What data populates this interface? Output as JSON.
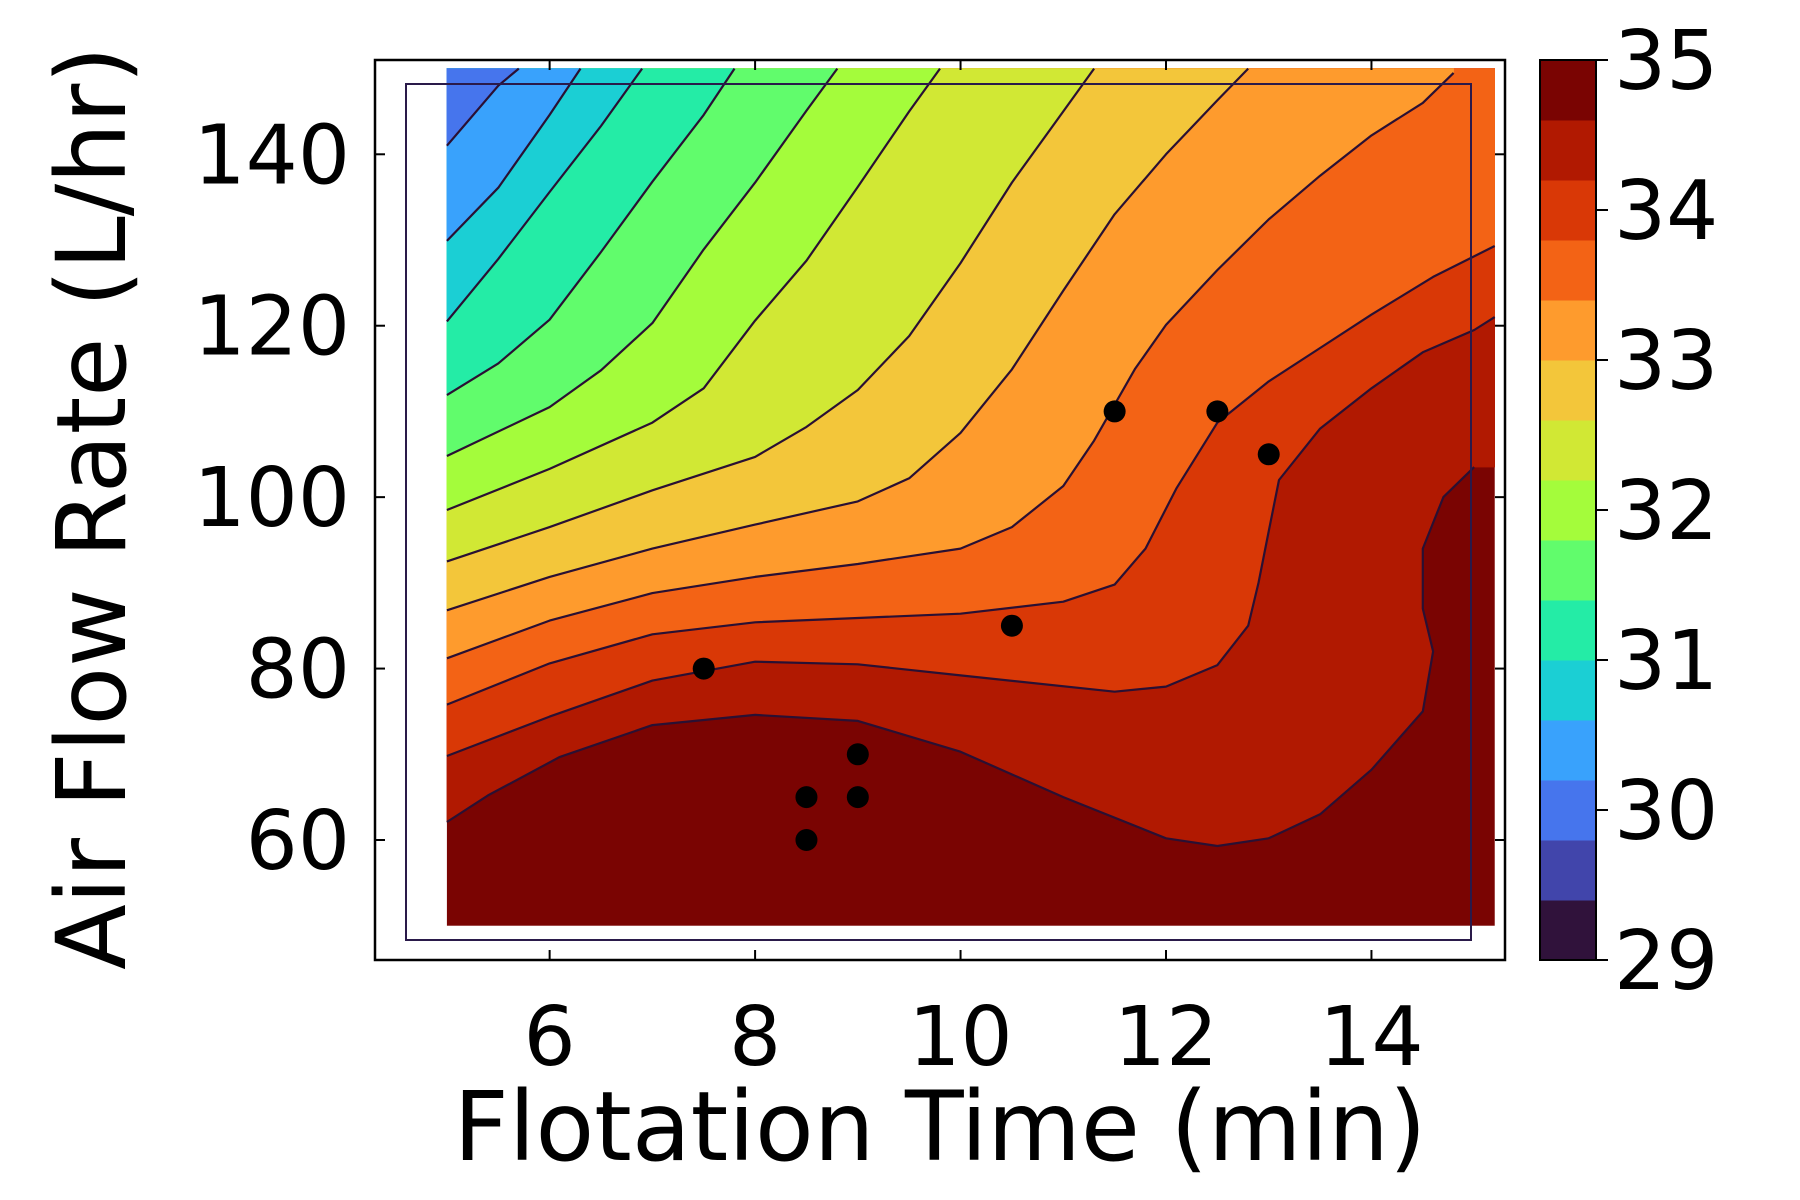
{
  "chart_data": {
    "type": "contour",
    "xlabel": "Flotation Time (min)",
    "ylabel": "Air Flow Rate (L/hr)",
    "xlim": [
      4.3,
      15.3
    ],
    "ylim": [
      46,
      151
    ],
    "xticks": [
      6,
      8,
      10,
      12,
      14
    ],
    "yticks": [
      60,
      80,
      100,
      120,
      140
    ],
    "colorbar": {
      "label": "",
      "range": [
        29,
        35
      ],
      "ticks": [
        29,
        30,
        31,
        32,
        33,
        34,
        35
      ],
      "levels": [
        29,
        29.4,
        29.8,
        30.2,
        30.6,
        31,
        31.4,
        31.8,
        32.2,
        32.6,
        33,
        33.4,
        33.8,
        34.2,
        34.6,
        35
      ],
      "colors": [
        "#30123b",
        "#4145ab",
        "#4675ed",
        "#39a2fc",
        "#1bcfd4",
        "#24eca6",
        "#61fc6c",
        "#a4fc3b",
        "#d1e834",
        "#f3c63a",
        "#fe9b2d",
        "#f36315",
        "#d93806",
        "#b11901",
        "#7a0402"
      ]
    },
    "contour_levels": [
      {
        "level": 34.6,
        "points": [
          [
            5,
            62.1
          ],
          [
            5.4,
            65.2
          ],
          [
            6.1,
            69.7
          ],
          [
            7,
            73.4
          ],
          [
            8,
            74.6
          ],
          [
            9,
            73.9
          ],
          [
            10,
            70.3
          ],
          [
            11,
            65
          ],
          [
            12,
            60.2
          ],
          [
            12.5,
            59.3
          ],
          [
            13,
            60.2
          ],
          [
            13.5,
            63
          ],
          [
            14,
            68.2
          ],
          [
            14.5,
            75
          ],
          [
            14.6,
            82
          ],
          [
            14.5,
            87
          ],
          [
            14.5,
            94
          ],
          [
            14.7,
            100
          ],
          [
            15,
            103.5
          ]
        ]
      },
      {
        "level": 34.2,
        "points": [
          [
            5,
            69.8
          ],
          [
            6,
            74.4
          ],
          [
            7,
            78.6
          ],
          [
            8,
            80.8
          ],
          [
            9,
            80.5
          ],
          [
            10,
            79.2
          ],
          [
            11.5,
            77.3
          ],
          [
            12,
            77.9
          ],
          [
            12.5,
            80.4
          ],
          [
            12.8,
            85
          ],
          [
            12.9,
            90
          ],
          [
            13,
            96
          ],
          [
            13.1,
            102
          ],
          [
            13.5,
            108
          ],
          [
            14,
            112.7
          ],
          [
            14.5,
            116.9
          ],
          [
            15,
            119.5
          ],
          [
            15.2,
            121
          ]
        ]
      },
      {
        "level": 33.8,
        "points": [
          [
            5,
            75.8
          ],
          [
            6,
            80.6
          ],
          [
            7,
            84
          ],
          [
            8,
            85.4
          ],
          [
            9,
            85.9
          ],
          [
            10,
            86.4
          ],
          [
            11,
            87.8
          ],
          [
            11.5,
            89.8
          ],
          [
            11.8,
            94
          ],
          [
            12.1,
            101
          ],
          [
            12.5,
            108.7
          ],
          [
            13,
            113.5
          ],
          [
            13.5,
            117.4
          ],
          [
            14,
            121.3
          ],
          [
            14.6,
            125.7
          ],
          [
            15.2,
            129.3
          ]
        ]
      },
      {
        "level": 33.4,
        "points": [
          [
            5,
            81.2
          ],
          [
            6,
            85.6
          ],
          [
            7,
            88.8
          ],
          [
            8,
            90.7
          ],
          [
            9,
            92.2
          ],
          [
            10,
            94
          ],
          [
            10.5,
            96.5
          ],
          [
            11,
            101.3
          ],
          [
            11.3,
            106.6
          ],
          [
            11.7,
            115
          ],
          [
            12,
            120.1
          ],
          [
            12.5,
            126.5
          ],
          [
            13,
            132.4
          ],
          [
            13.5,
            137.5
          ],
          [
            14,
            142.2
          ],
          [
            14.5,
            146
          ],
          [
            14.8,
            149.5
          ]
        ]
      },
      {
        "level": 33.0,
        "points": [
          [
            5,
            86.8
          ],
          [
            6,
            90.7
          ],
          [
            7,
            94
          ],
          [
            8,
            96.8
          ],
          [
            9,
            99.5
          ],
          [
            9.5,
            102.2
          ],
          [
            10,
            107.5
          ],
          [
            10.5,
            114.9
          ],
          [
            11,
            124.1
          ],
          [
            11.5,
            133
          ],
          [
            12,
            140
          ],
          [
            12.5,
            146.3
          ],
          [
            12.8,
            150
          ]
        ]
      },
      {
        "level": 32.6,
        "points": [
          [
            5,
            92.5
          ],
          [
            6,
            96.5
          ],
          [
            7,
            100.8
          ],
          [
            8,
            104.7
          ],
          [
            8.5,
            108.2
          ],
          [
            9,
            112.5
          ],
          [
            9.5,
            118.8
          ],
          [
            10,
            127.3
          ],
          [
            10.5,
            136.7
          ],
          [
            11,
            145
          ],
          [
            11.3,
            150
          ]
        ]
      },
      {
        "level": 32.2,
        "points": [
          [
            5,
            98.5
          ],
          [
            6,
            103.3
          ],
          [
            7,
            108.7
          ],
          [
            7.5,
            112.7
          ],
          [
            8,
            120.6
          ],
          [
            8.5,
            127.6
          ],
          [
            9,
            136.2
          ],
          [
            9.5,
            145
          ],
          [
            9.8,
            150
          ]
        ]
      },
      {
        "level": 31.8,
        "points": [
          [
            5,
            104.8
          ],
          [
            6,
            110.5
          ],
          [
            6.5,
            114.8
          ],
          [
            7,
            120.3
          ],
          [
            7.5,
            128.9
          ],
          [
            8,
            136.7
          ],
          [
            8.5,
            145.1
          ],
          [
            8.8,
            150
          ]
        ]
      },
      {
        "level": 31.4,
        "points": [
          [
            5,
            111.9
          ],
          [
            5.5,
            115.6
          ],
          [
            6,
            120.7
          ],
          [
            6.5,
            128.6
          ],
          [
            7,
            136.8
          ],
          [
            7.5,
            144.6
          ],
          [
            7.8,
            150
          ]
        ]
      },
      {
        "level": 31.0,
        "points": [
          [
            5,
            120.5
          ],
          [
            5.5,
            127.8
          ],
          [
            6,
            135.6
          ],
          [
            6.5,
            143.3
          ],
          [
            6.9,
            150
          ]
        ]
      },
      {
        "level": 30.6,
        "points": [
          [
            5,
            129.9
          ],
          [
            5.5,
            136.1
          ],
          [
            6,
            144.6
          ],
          [
            6.3,
            150
          ]
        ]
      },
      {
        "level": 30.2,
        "points": [
          [
            5,
            141
          ],
          [
            5.5,
            148
          ],
          [
            5.7,
            150
          ]
        ]
      }
    ],
    "points": [
      {
        "x": 7.5,
        "y": 80
      },
      {
        "x": 8.5,
        "y": 65
      },
      {
        "x": 8.5,
        "y": 60
      },
      {
        "x": 9,
        "y": 70
      },
      {
        "x": 9,
        "y": 65
      },
      {
        "x": 10.5,
        "y": 85
      },
      {
        "x": 11.5,
        "y": 110
      },
      {
        "x": 12.5,
        "y": 110
      },
      {
        "x": 13,
        "y": 105
      }
    ],
    "legend": "none",
    "grid": false
  }
}
